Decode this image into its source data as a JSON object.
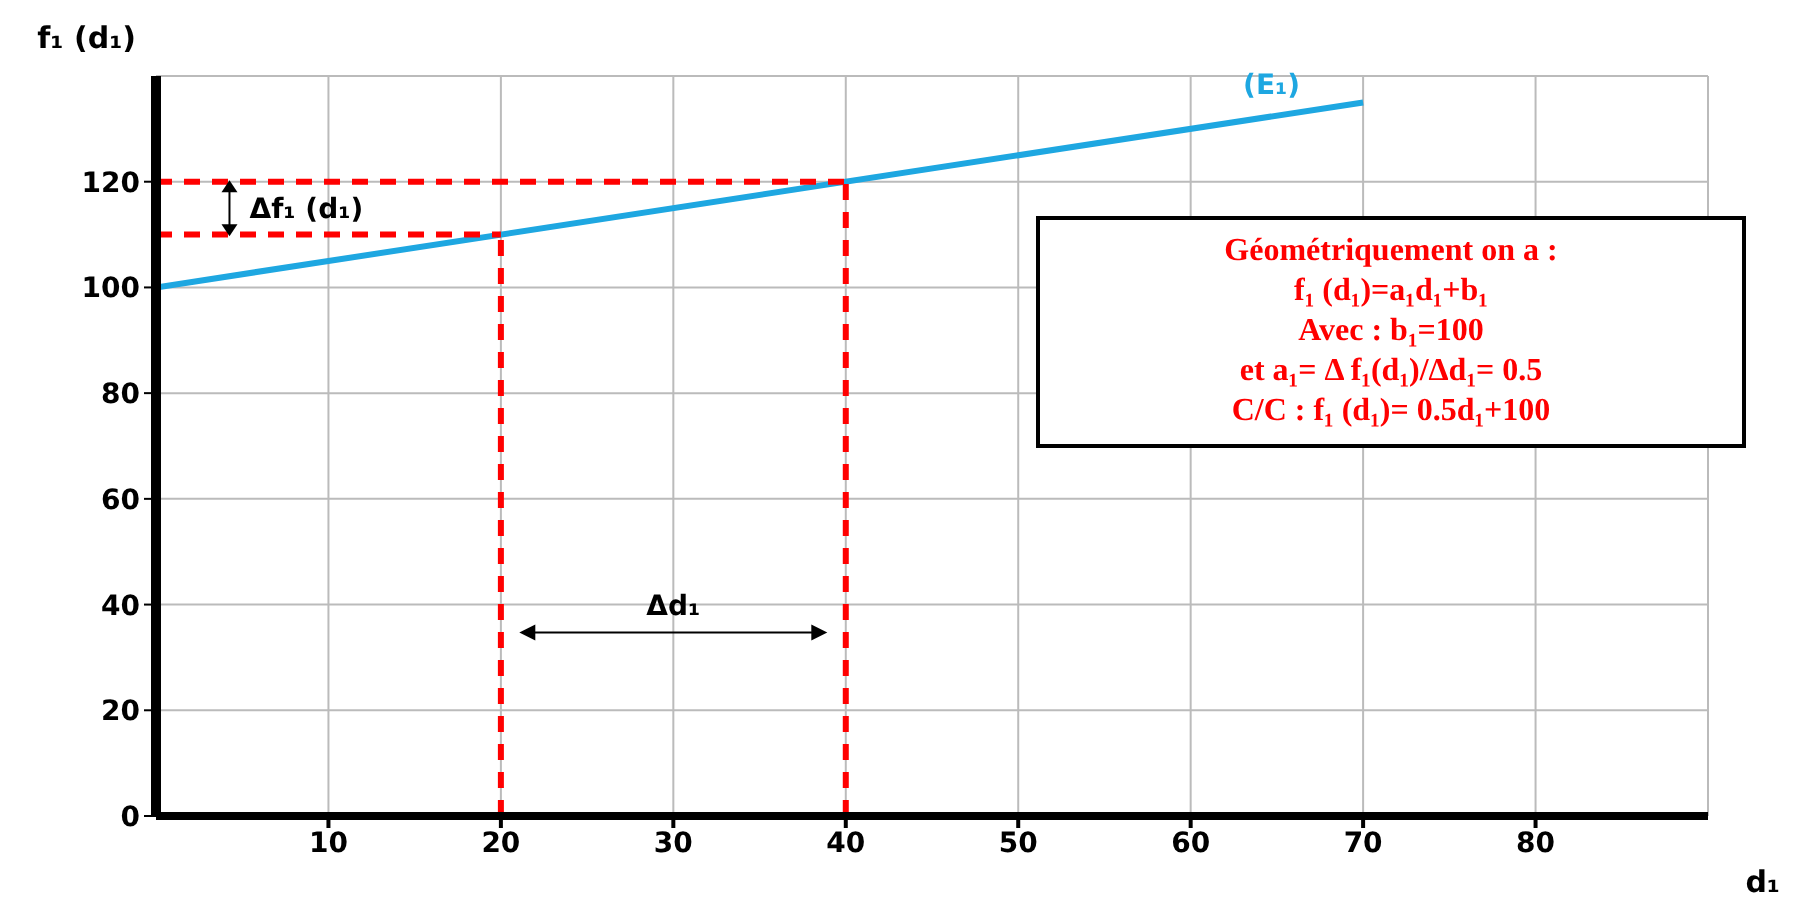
{
  "chart_data": {
    "type": "line",
    "xlabel": "d₁",
    "ylabel": "f₁ (d₁)",
    "xlim": [
      0,
      90
    ],
    "ylim": [
      0,
      140
    ],
    "xticks": [
      10,
      20,
      30,
      40,
      50,
      60,
      70,
      80
    ],
    "yticks": [
      0,
      20,
      40,
      60,
      80,
      100,
      120
    ],
    "grid": true,
    "legend": false,
    "marker": "none",
    "series": [
      {
        "name": "(E₁)",
        "color": "#1ea7e1",
        "x": [
          0,
          70
        ],
        "values": [
          100,
          135
        ]
      },
      {
        "color": "#ff0000",
        "line_style": "dashed",
        "x": [
          0,
          40
        ],
        "values": [
          120,
          120
        ]
      },
      {
        "color": "#ff0000",
        "line_style": "dashed",
        "x": [
          0,
          20
        ],
        "values": [
          110,
          110
        ]
      },
      {
        "color": "#ff0000",
        "line_style": "dashed",
        "x": [
          20,
          20
        ],
        "values": [
          0,
          110
        ]
      },
      {
        "color": "#ff0000",
        "line_style": "dashed",
        "x": [
          40,
          40
        ],
        "values": [
          0,
          120
        ]
      }
    ],
    "annotations": [
      "Géométriquement on a :",
      "f₁ (d₁)=a₁d₁+b₁",
      "Avec : b₁=100",
      "et a₁= Δ f₁(d₁)/Δd₁= 0.5",
      "C/C : f₁ (d₁)= 0.5d₁+100",
      "Δf₁ (d₁)",
      "Δd₁"
    ]
  }
}
